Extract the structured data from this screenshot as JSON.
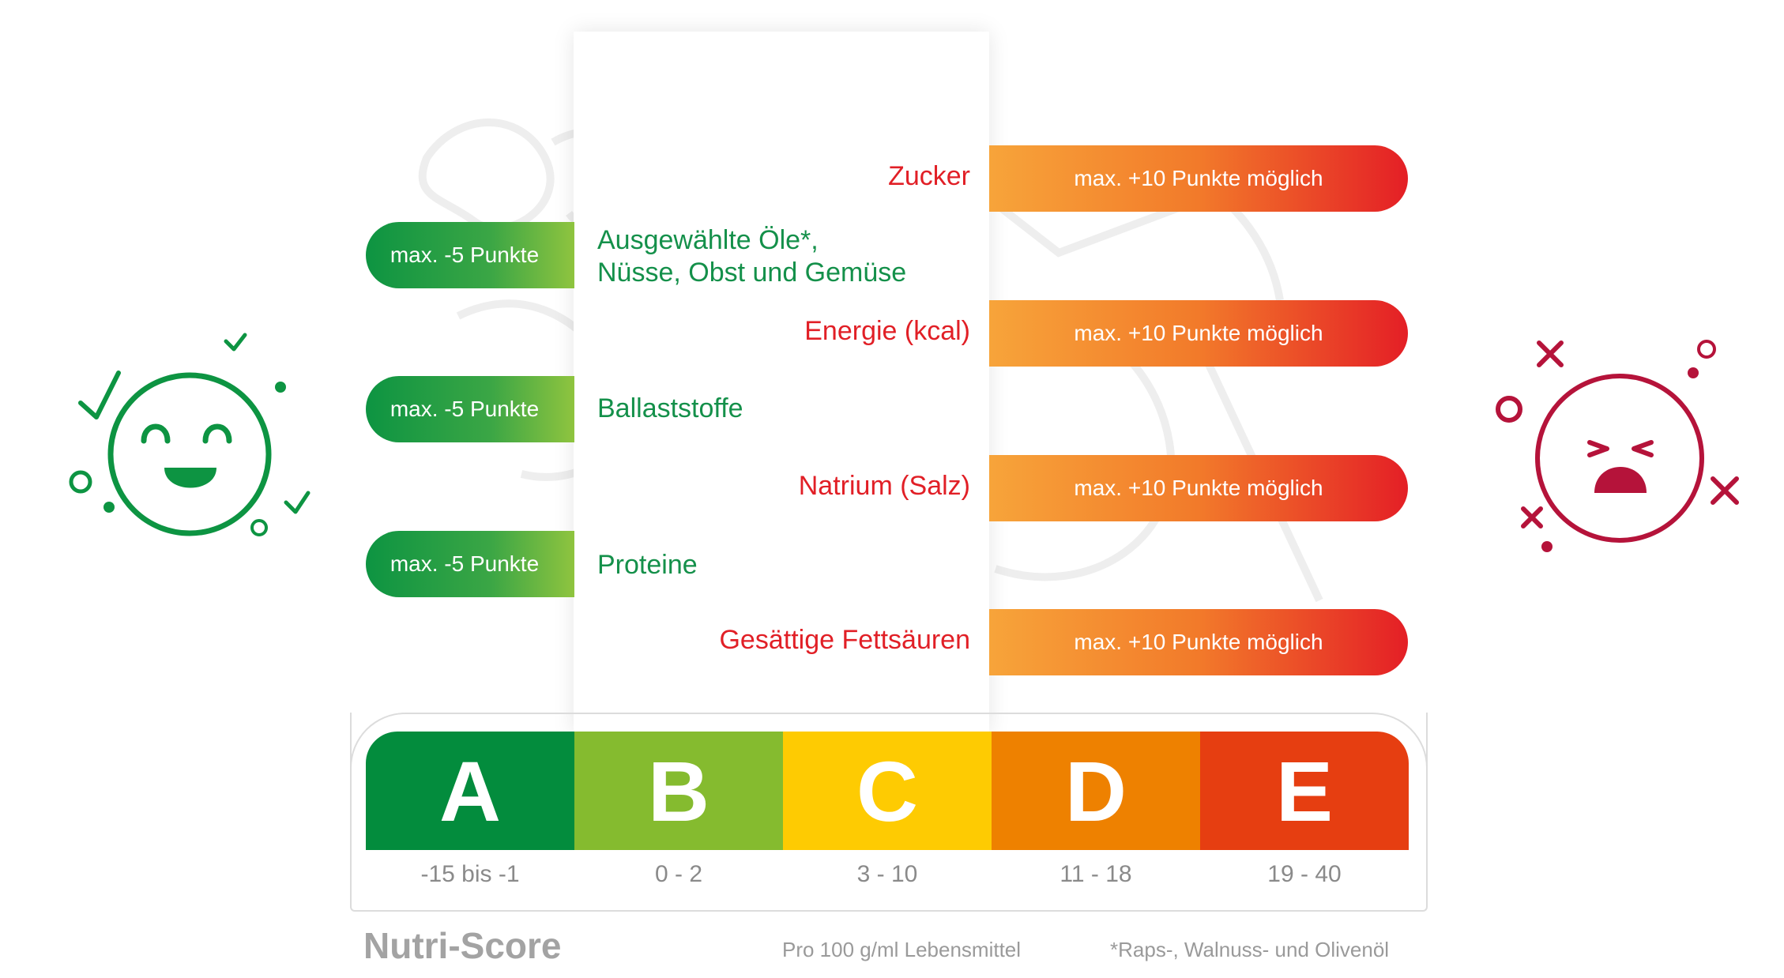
{
  "colors": {
    "good_green": "#14904a",
    "bad_red": "#e11f26",
    "happy_face": "#0d9442",
    "sad_face": "#b5133a"
  },
  "left_items": [
    {
      "pill": "max. -5 Punkte",
      "label_line1": "Ausgewählte Öle*,",
      "label_line2": "Nüsse, Obst und Gemüse"
    },
    {
      "pill": "max. -5 Punkte",
      "label_line1": "Ballaststoffe",
      "label_line2": ""
    },
    {
      "pill": "max. -5 Punkte",
      "label_line1": "Proteine",
      "label_line2": ""
    }
  ],
  "right_items": [
    {
      "label": "Zucker",
      "pill": "max. +10 Punkte möglich"
    },
    {
      "label": "Energie (kcal)",
      "pill": "max. +10 Punkte möglich"
    },
    {
      "label": "Natrium (Salz)",
      "pill": "max. +10 Punkte möglich"
    },
    {
      "label": "Gesättige Fettsäuren",
      "pill": "max. +10 Punkte möglich"
    }
  ],
  "grades": [
    {
      "letter": "A",
      "range": "-15 bis -1",
      "color": "#038c3d"
    },
    {
      "letter": "B",
      "range": "0 - 2",
      "color": "#85bb2f"
    },
    {
      "letter": "C",
      "range": "3 - 10",
      "color": "#fecb02"
    },
    {
      "letter": "D",
      "range": "11 - 18",
      "color": "#ee8100"
    },
    {
      "letter": "E",
      "range": "19 - 40",
      "color": "#e63e11"
    }
  ],
  "footer": {
    "title": "Nutri-Score",
    "note_basis": "Pro 100 g/ml Lebensmittel",
    "note_oils": "*Raps-, Walnuss- und Olivenöl"
  },
  "icons": {
    "happy": "happy-face-icon",
    "sad": "sad-face-icon"
  }
}
